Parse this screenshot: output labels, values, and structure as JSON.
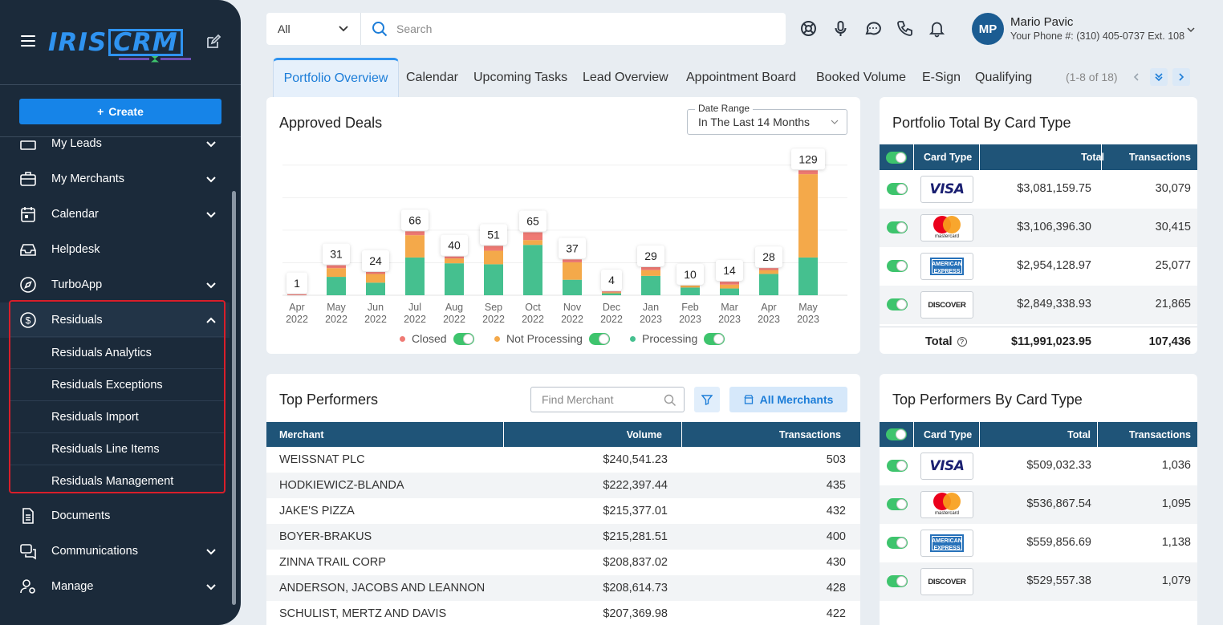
{
  "brand": {
    "logo_left": "IRIS",
    "logo_right": "CRM"
  },
  "sidebar": {
    "create_label": "Create",
    "items": [
      {
        "label": "My Leads"
      },
      {
        "label": "My Merchants"
      },
      {
        "label": "Calendar"
      },
      {
        "label": "Helpdesk"
      },
      {
        "label": "TurboApp"
      },
      {
        "label": "Residuals"
      },
      {
        "label": "Documents"
      },
      {
        "label": "Communications"
      },
      {
        "label": "Manage"
      }
    ],
    "residuals_sub": [
      {
        "label": "Residuals Analytics"
      },
      {
        "label": "Residuals Exceptions"
      },
      {
        "label": "Residuals Import"
      },
      {
        "label": "Residuals Line Items"
      },
      {
        "label": "Residuals Management"
      }
    ]
  },
  "search": {
    "scope": "All",
    "placeholder": "Search"
  },
  "user": {
    "initials": "MP",
    "name": "Mario Pavic",
    "phone": "Your Phone #: (310) 405-0737 Ext. 108"
  },
  "tabs": [
    "Portfolio Overview",
    "Calendar",
    "Upcoming Tasks",
    "Lead Overview",
    "Appointment Board",
    "Booked Volume",
    "E-Sign",
    "Qualifying"
  ],
  "tabs_pager": "(1-8 of 18)",
  "approved_deals": {
    "title": "Approved Deals",
    "date_range_label": "Date Range",
    "date_range_value": "In The Last 14 Months"
  },
  "chart_data": {
    "type": "bar",
    "stacked": true,
    "title": "Approved Deals",
    "categories": [
      "Apr 2022",
      "May 2022",
      "Jun 2022",
      "Jul 2022",
      "Aug 2022",
      "Sep 2022",
      "Oct 2022",
      "Nov 2022",
      "Dec 2022",
      "Jan 2023",
      "Feb 2023",
      "Mar 2023",
      "Apr 2023",
      "May 2023"
    ],
    "totals": [
      1,
      31,
      24,
      66,
      40,
      51,
      65,
      37,
      4,
      29,
      10,
      14,
      28,
      129
    ],
    "series": [
      {
        "name": "Processing",
        "color": "#45c08f",
        "values": [
          0,
          19,
          13,
          39,
          33,
          32,
          52,
          16,
          2,
          20,
          8,
          7,
          22,
          39
        ]
      },
      {
        "name": "Not Processing",
        "color": "#f4a94a",
        "values": [
          0,
          9,
          9,
          23,
          5,
          14,
          5,
          18,
          1,
          6,
          2,
          4,
          4,
          86
        ]
      },
      {
        "name": "Closed",
        "color": "#ef7a74",
        "values": [
          1,
          3,
          2,
          4,
          2,
          5,
          8,
          3,
          1,
          3,
          0,
          3,
          2,
          4
        ]
      }
    ],
    "ylim": [
      0,
      140
    ]
  },
  "legend": [
    {
      "label": "Closed",
      "color": "#ef7a74"
    },
    {
      "label": "Not Processing",
      "color": "#f4a94a"
    },
    {
      "label": "Processing",
      "color": "#45c08f"
    }
  ],
  "portfolio_card_type": {
    "title": "Portfolio Total By Card Type",
    "headers": {
      "card_type": "Card Type",
      "total": "Total",
      "transactions": "Transactions"
    },
    "rows": [
      {
        "card": "visa",
        "label": "VISA",
        "total": "$3,081,159.75",
        "transactions": "30,079"
      },
      {
        "card": "mastercard",
        "label": "mastercard",
        "total": "$3,106,396.30",
        "transactions": "30,415"
      },
      {
        "card": "amex",
        "label": "AMERICAN EXPRESS",
        "total": "$2,954,128.97",
        "transactions": "25,077"
      },
      {
        "card": "discover",
        "label": "DISCOVER",
        "total": "$2,849,338.93",
        "transactions": "21,865"
      }
    ],
    "total_label": "Total",
    "total": "$11,991,023.95",
    "total_transactions": "107,436"
  },
  "top_performers": {
    "title": "Top Performers",
    "find_placeholder": "Find Merchant",
    "all_merchants": "All Merchants",
    "headers": {
      "merchant": "Merchant",
      "volume": "Volume",
      "transactions": "Transactions"
    },
    "rows": [
      {
        "merchant": "WEISSNAT PLC",
        "volume": "$240,541.23",
        "transactions": "503"
      },
      {
        "merchant": "HODKIEWICZ-BLANDA",
        "volume": "$222,397.44",
        "transactions": "435"
      },
      {
        "merchant": "JAKE'S PIZZA",
        "volume": "$215,377.01",
        "transactions": "432"
      },
      {
        "merchant": "BOYER-BRAKUS",
        "volume": "$215,281.51",
        "transactions": "400"
      },
      {
        "merchant": "ZINNA TRAIL CORP",
        "volume": "$208,837.02",
        "transactions": "430"
      },
      {
        "merchant": "ANDERSON, JACOBS AND LEANNON",
        "volume": "$208,614.73",
        "transactions": "428"
      },
      {
        "merchant": "SCHULIST, MERTZ AND DAVIS",
        "volume": "$207,369.98",
        "transactions": "422"
      }
    ]
  },
  "top_performers_card_type": {
    "title": "Top Performers By Card Type",
    "headers": {
      "card_type": "Card Type",
      "total": "Total",
      "transactions": "Transactions"
    },
    "rows": [
      {
        "card": "visa",
        "label": "VISA",
        "total": "$509,032.33",
        "transactions": "1,036"
      },
      {
        "card": "mastercard",
        "label": "mastercard",
        "total": "$536,867.54",
        "transactions": "1,095"
      },
      {
        "card": "amex",
        "label": "AMERICAN EXPRESS",
        "total": "$559,856.69",
        "transactions": "1,138"
      },
      {
        "card": "discover",
        "label": "DISCOVER",
        "total": "$529,557.38",
        "transactions": "1,079"
      }
    ]
  }
}
